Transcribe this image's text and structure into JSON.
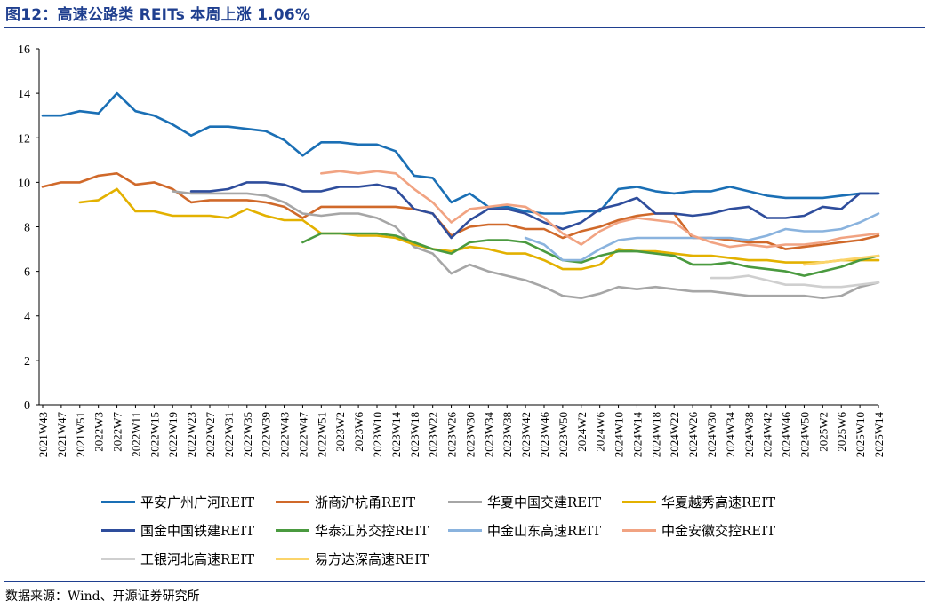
{
  "figure": {
    "title": "图12：高速公路类 REITs 本周上涨 1.06%",
    "source": "数据来源：Wind、开源证券研究所"
  },
  "chart_data": {
    "type": "line",
    "title": "",
    "xlabel": "",
    "ylabel": "",
    "ylim": [
      0,
      16
    ],
    "yticks": [
      0,
      2,
      4,
      6,
      8,
      10,
      12,
      14,
      16
    ],
    "x_range": [
      "2021W43",
      "2025W14"
    ],
    "x": [
      "2021W43",
      "2021W47",
      "2021W51",
      "2022W3",
      "2022W7",
      "2022W11",
      "2022W15",
      "2022W19",
      "2022W23",
      "2022W27",
      "2022W31",
      "2022W35",
      "2022W39",
      "2022W43",
      "2022W47",
      "2022W51",
      "2023W2",
      "2023W6",
      "2023W10",
      "2023W14",
      "2023W18",
      "2023W22",
      "2023W26",
      "2023W30",
      "2023W34",
      "2023W38",
      "2023W42",
      "2023W46",
      "2023W50",
      "2024W2",
      "2024W6",
      "2024W10",
      "2024W14",
      "2024W18",
      "2024W22",
      "2024W26",
      "2024W30",
      "2024W34",
      "2024W38",
      "2024W42",
      "2024W46",
      "2024W50",
      "2025W2",
      "2025W6",
      "2025W10",
      "2025W14"
    ],
    "grid": false,
    "legend_position": "bottom",
    "series": [
      {
        "name": "平安广州广河REIT",
        "color": "#1a6fb5",
        "values": [
          13.0,
          13.0,
          13.2,
          13.1,
          14.0,
          13.2,
          13.0,
          12.6,
          12.1,
          12.5,
          12.5,
          12.4,
          12.3,
          11.9,
          11.2,
          11.8,
          11.8,
          11.7,
          11.7,
          11.4,
          10.3,
          10.2,
          9.1,
          9.5,
          8.9,
          8.9,
          8.7,
          8.6,
          8.6,
          8.7,
          8.7,
          9.7,
          9.8,
          9.6,
          9.5,
          9.6,
          9.6,
          9.8,
          9.6,
          9.4,
          9.3,
          9.3,
          9.3,
          9.4,
          9.5,
          9.5
        ]
      },
      {
        "name": "浙商沪杭甬REIT",
        "color": "#d0692a",
        "values": [
          9.8,
          10.0,
          10.0,
          10.3,
          10.4,
          9.9,
          10.0,
          9.7,
          9.1,
          9.2,
          9.2,
          9.2,
          9.1,
          8.9,
          8.4,
          8.9,
          8.9,
          8.9,
          8.9,
          8.9,
          8.8,
          8.6,
          7.6,
          8.0,
          8.1,
          8.1,
          7.9,
          7.9,
          7.5,
          7.8,
          8.0,
          8.3,
          8.5,
          8.6,
          8.6,
          7.5,
          7.5,
          7.4,
          7.3,
          7.3,
          7.0,
          7.1,
          7.2,
          7.3,
          7.4,
          7.6
        ]
      },
      {
        "name": "华夏中国交建REIT",
        "color": "#a6a6a6",
        "values": [
          null,
          null,
          null,
          null,
          null,
          null,
          null,
          9.6,
          9.5,
          9.5,
          9.5,
          9.5,
          9.4,
          9.1,
          8.6,
          8.5,
          8.6,
          8.6,
          8.4,
          8.0,
          7.1,
          6.8,
          5.9,
          6.3,
          6.0,
          5.8,
          5.6,
          5.3,
          4.9,
          4.8,
          5.0,
          5.3,
          5.2,
          5.3,
          5.2,
          5.1,
          5.1,
          5.0,
          4.9,
          4.9,
          4.9,
          4.9,
          4.8,
          4.9,
          5.3,
          5.5
        ]
      },
      {
        "name": "华夏越秀高速REIT",
        "color": "#e3b100",
        "values": [
          9.8,
          null,
          9.1,
          9.2,
          9.7,
          8.7,
          8.7,
          8.5,
          8.5,
          8.5,
          8.4,
          8.8,
          8.5,
          8.3,
          8.3,
          7.7,
          7.7,
          7.6,
          7.6,
          7.5,
          7.2,
          7.0,
          6.9,
          7.1,
          7.0,
          6.8,
          6.8,
          6.5,
          6.1,
          6.1,
          6.3,
          7.0,
          6.9,
          6.9,
          6.8,
          6.7,
          6.7,
          6.6,
          6.5,
          6.5,
          6.4,
          6.4,
          6.4,
          6.5,
          6.5,
          6.5
        ]
      },
      {
        "name": "国金中国铁建REIT",
        "color": "#2e4d9c",
        "values": [
          null,
          null,
          null,
          null,
          null,
          null,
          null,
          null,
          9.6,
          9.6,
          9.7,
          10.0,
          10.0,
          9.9,
          9.6,
          9.6,
          9.8,
          9.8,
          9.9,
          9.7,
          8.8,
          8.6,
          7.5,
          8.3,
          8.8,
          8.8,
          8.6,
          8.2,
          7.9,
          8.2,
          8.8,
          9.0,
          9.3,
          8.6,
          8.6,
          8.5,
          8.6,
          8.8,
          8.9,
          8.4,
          8.4,
          8.5,
          8.9,
          8.8,
          9.5,
          9.5
        ]
      },
      {
        "name": "华泰江苏交控REIT",
        "color": "#4a9a3f",
        "values": [
          null,
          null,
          null,
          null,
          null,
          null,
          null,
          null,
          null,
          null,
          null,
          null,
          null,
          null,
          7.3,
          7.7,
          7.7,
          7.7,
          7.7,
          7.6,
          7.3,
          7.0,
          6.8,
          7.3,
          7.4,
          7.4,
          7.3,
          6.9,
          6.5,
          6.4,
          6.7,
          6.9,
          6.9,
          6.8,
          6.7,
          6.3,
          6.3,
          6.4,
          6.2,
          6.1,
          6.0,
          5.8,
          6.0,
          6.2,
          6.5,
          6.7
        ]
      },
      {
        "name": "中金山东高速REIT",
        "color": "#8ab3de",
        "values": [
          null,
          null,
          null,
          null,
          null,
          null,
          null,
          null,
          null,
          null,
          null,
          null,
          null,
          null,
          null,
          null,
          null,
          null,
          null,
          null,
          null,
          null,
          null,
          null,
          null,
          null,
          7.5,
          7.2,
          6.5,
          6.5,
          7.0,
          7.4,
          7.5,
          7.5,
          7.5,
          7.5,
          7.5,
          7.5,
          7.4,
          7.6,
          7.9,
          7.8,
          7.8,
          7.9,
          8.2,
          8.6
        ]
      },
      {
        "name": "中金安徽交控REIT",
        "color": "#f1a382",
        "values": [
          null,
          null,
          null,
          null,
          null,
          null,
          null,
          null,
          null,
          null,
          null,
          null,
          null,
          null,
          null,
          10.4,
          10.5,
          10.4,
          10.5,
          10.4,
          9.7,
          9.1,
          8.2,
          8.8,
          8.9,
          9.0,
          8.9,
          8.4,
          7.7,
          7.2,
          7.8,
          8.2,
          8.4,
          8.3,
          8.2,
          7.6,
          7.3,
          7.1,
          7.2,
          7.1,
          7.2,
          7.2,
          7.3,
          7.5,
          7.6,
          7.7
        ]
      },
      {
        "name": "工银河北高速REIT",
        "color": "#cfcfcf",
        "values": [
          null,
          null,
          null,
          null,
          null,
          null,
          null,
          null,
          null,
          null,
          null,
          null,
          null,
          null,
          null,
          null,
          null,
          null,
          null,
          null,
          null,
          null,
          null,
          null,
          null,
          null,
          null,
          null,
          null,
          null,
          null,
          null,
          null,
          null,
          null,
          null,
          5.7,
          5.7,
          5.8,
          5.6,
          5.4,
          5.4,
          5.3,
          5.3,
          5.4,
          5.5
        ]
      },
      {
        "name": "易方达深高速REIT",
        "color": "#fbd46a",
        "values": [
          null,
          null,
          null,
          null,
          null,
          null,
          null,
          null,
          null,
          null,
          null,
          null,
          null,
          null,
          null,
          null,
          null,
          null,
          null,
          null,
          null,
          null,
          null,
          null,
          null,
          null,
          null,
          null,
          null,
          null,
          null,
          null,
          null,
          null,
          null,
          null,
          null,
          null,
          null,
          null,
          null,
          6.3,
          6.4,
          6.5,
          6.6,
          6.7
        ]
      }
    ]
  }
}
